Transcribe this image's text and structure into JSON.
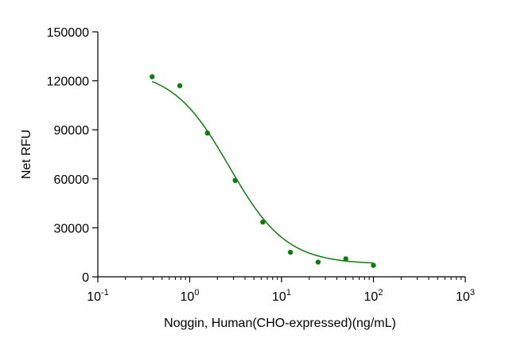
{
  "chart_data": {
    "type": "scatter",
    "xlabel": "Noggin, Human(CHO-expressed)(ng/mL)",
    "ylabel": "Net RFU",
    "x_scale": "log",
    "xlim": [
      0.1,
      1000
    ],
    "ylim": [
      0,
      150000
    ],
    "x_ticks": [
      {
        "value": 0.1,
        "base": "10",
        "exp": "-1"
      },
      {
        "value": 1,
        "base": "10",
        "exp": "0"
      },
      {
        "value": 10,
        "base": "10",
        "exp": "1"
      },
      {
        "value": 100,
        "base": "10",
        "exp": "2"
      },
      {
        "value": 1000,
        "base": "10",
        "exp": "3"
      }
    ],
    "y_ticks": [
      {
        "value": 0,
        "label": "0"
      },
      {
        "value": 30000,
        "label": "30000"
      },
      {
        "value": 60000,
        "label": "60000"
      },
      {
        "value": 90000,
        "label": "90000"
      },
      {
        "value": 120000,
        "label": "120000"
      },
      {
        "value": 150000,
        "label": "150000"
      }
    ],
    "series": [
      {
        "color": "#0a7d0a",
        "points": [
          {
            "x": 0.39,
            "y": 122500
          },
          {
            "x": 0.78,
            "y": 117000
          },
          {
            "x": 1.56,
            "y": 88000
          },
          {
            "x": 3.125,
            "y": 59000
          },
          {
            "x": 6.25,
            "y": 33500
          },
          {
            "x": 12.5,
            "y": 15000
          },
          {
            "x": 25,
            "y": 9000
          },
          {
            "x": 50,
            "y": 11000
          },
          {
            "x": 100,
            "y": 7000
          }
        ],
        "fit": {
          "model": "4PL",
          "top": 127000,
          "bottom": 7700,
          "ec50": 2.7,
          "hill": 1.4
        }
      }
    ],
    "grid": false,
    "legend": "none"
  }
}
